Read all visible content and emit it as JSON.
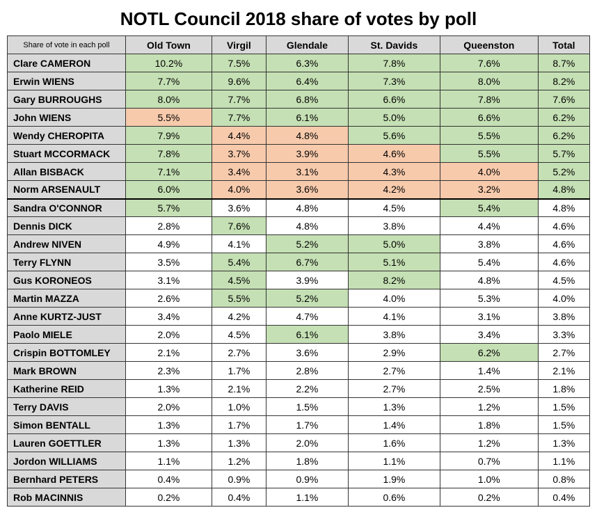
{
  "title": "NOTL Council 2018 share of votes by poll",
  "corner_label": "Share of vote in each poll",
  "columns": [
    "Old Town",
    "Virgil",
    "Glendale",
    "St. Davids",
    "Queenston",
    "Total"
  ],
  "colors": {
    "header_bg": "#d9d9d9",
    "name_bg": "#d9d9d9",
    "green": "#c5e0b4",
    "orange": "#f7caac",
    "white": "#ffffff",
    "border": "#333333",
    "thick_border": "#000000"
  },
  "separator_after_row_index": 7,
  "rows": [
    {
      "name": "Clare CAMERON",
      "cells": [
        {
          "v": "10.2%",
          "c": "green"
        },
        {
          "v": "7.5%",
          "c": "green"
        },
        {
          "v": "6.3%",
          "c": "green"
        },
        {
          "v": "7.8%",
          "c": "green"
        },
        {
          "v": "7.6%",
          "c": "green"
        },
        {
          "v": "8.7%",
          "c": "green"
        }
      ]
    },
    {
      "name": "Erwin WIENS",
      "cells": [
        {
          "v": "7.7%",
          "c": "green"
        },
        {
          "v": "9.6%",
          "c": "green"
        },
        {
          "v": "6.4%",
          "c": "green"
        },
        {
          "v": "7.3%",
          "c": "green"
        },
        {
          "v": "8.0%",
          "c": "green"
        },
        {
          "v": "8.2%",
          "c": "green"
        }
      ]
    },
    {
      "name": "Gary BURROUGHS",
      "cells": [
        {
          "v": "8.0%",
          "c": "green"
        },
        {
          "v": "7.7%",
          "c": "green"
        },
        {
          "v": "6.8%",
          "c": "green"
        },
        {
          "v": "6.6%",
          "c": "green"
        },
        {
          "v": "7.8%",
          "c": "green"
        },
        {
          "v": "7.6%",
          "c": "green"
        }
      ]
    },
    {
      "name": "John WIENS",
      "cells": [
        {
          "v": "5.5%",
          "c": "orange"
        },
        {
          "v": "7.7%",
          "c": "green"
        },
        {
          "v": "6.1%",
          "c": "green"
        },
        {
          "v": "5.0%",
          "c": "green"
        },
        {
          "v": "6.6%",
          "c": "green"
        },
        {
          "v": "6.2%",
          "c": "green"
        }
      ]
    },
    {
      "name": "Wendy CHEROPITA",
      "cells": [
        {
          "v": "7.9%",
          "c": "green"
        },
        {
          "v": "4.4%",
          "c": "orange"
        },
        {
          "v": "4.8%",
          "c": "orange"
        },
        {
          "v": "5.6%",
          "c": "green"
        },
        {
          "v": "5.5%",
          "c": "green"
        },
        {
          "v": "6.2%",
          "c": "green"
        }
      ]
    },
    {
      "name": "Stuart MCCORMACK",
      "cells": [
        {
          "v": "7.8%",
          "c": "green"
        },
        {
          "v": "3.7%",
          "c": "orange"
        },
        {
          "v": "3.9%",
          "c": "orange"
        },
        {
          "v": "4.6%",
          "c": "orange"
        },
        {
          "v": "5.5%",
          "c": "green"
        },
        {
          "v": "5.7%",
          "c": "green"
        }
      ]
    },
    {
      "name": "Allan BISBACK",
      "cells": [
        {
          "v": "7.1%",
          "c": "green"
        },
        {
          "v": "3.4%",
          "c": "orange"
        },
        {
          "v": "3.1%",
          "c": "orange"
        },
        {
          "v": "4.3%",
          "c": "orange"
        },
        {
          "v": "4.0%",
          "c": "orange"
        },
        {
          "v": "5.2%",
          "c": "green"
        }
      ]
    },
    {
      "name": "Norm ARSENAULT",
      "cells": [
        {
          "v": "6.0%",
          "c": "green"
        },
        {
          "v": "4.0%",
          "c": "orange"
        },
        {
          "v": "3.6%",
          "c": "orange"
        },
        {
          "v": "4.2%",
          "c": "orange"
        },
        {
          "v": "3.2%",
          "c": "orange"
        },
        {
          "v": "4.8%",
          "c": "green"
        }
      ]
    },
    {
      "name": "Sandra O'CONNOR",
      "cells": [
        {
          "v": "5.7%",
          "c": "green"
        },
        {
          "v": "3.6%",
          "c": "white"
        },
        {
          "v": "4.8%",
          "c": "white"
        },
        {
          "v": "4.5%",
          "c": "white"
        },
        {
          "v": "5.4%",
          "c": "green"
        },
        {
          "v": "4.8%",
          "c": "white"
        }
      ]
    },
    {
      "name": "Dennis DICK",
      "cells": [
        {
          "v": "2.8%",
          "c": "white"
        },
        {
          "v": "7.6%",
          "c": "green"
        },
        {
          "v": "4.8%",
          "c": "white"
        },
        {
          "v": "3.8%",
          "c": "white"
        },
        {
          "v": "4.4%",
          "c": "white"
        },
        {
          "v": "4.6%",
          "c": "white"
        }
      ]
    },
    {
      "name": "Andrew NIVEN",
      "cells": [
        {
          "v": "4.9%",
          "c": "white"
        },
        {
          "v": "4.1%",
          "c": "white"
        },
        {
          "v": "5.2%",
          "c": "green"
        },
        {
          "v": "5.0%",
          "c": "green"
        },
        {
          "v": "3.8%",
          "c": "white"
        },
        {
          "v": "4.6%",
          "c": "white"
        }
      ]
    },
    {
      "name": "Terry FLYNN",
      "cells": [
        {
          "v": "3.5%",
          "c": "white"
        },
        {
          "v": "5.4%",
          "c": "green"
        },
        {
          "v": "6.7%",
          "c": "green"
        },
        {
          "v": "5.1%",
          "c": "green"
        },
        {
          "v": "5.4%",
          "c": "white"
        },
        {
          "v": "4.6%",
          "c": "white"
        }
      ]
    },
    {
      "name": "Gus KORONEOS",
      "cells": [
        {
          "v": "3.1%",
          "c": "white"
        },
        {
          "v": "4.5%",
          "c": "green"
        },
        {
          "v": "3.9%",
          "c": "white"
        },
        {
          "v": "8.2%",
          "c": "green"
        },
        {
          "v": "4.8%",
          "c": "white"
        },
        {
          "v": "4.5%",
          "c": "white"
        }
      ]
    },
    {
      "name": "Martin MAZZA",
      "cells": [
        {
          "v": "2.6%",
          "c": "white"
        },
        {
          "v": "5.5%",
          "c": "green"
        },
        {
          "v": "5.2%",
          "c": "green"
        },
        {
          "v": "4.0%",
          "c": "white"
        },
        {
          "v": "5.3%",
          "c": "white"
        },
        {
          "v": "4.0%",
          "c": "white"
        }
      ]
    },
    {
      "name": "Anne KURTZ-JUST",
      "cells": [
        {
          "v": "3.4%",
          "c": "white"
        },
        {
          "v": "4.2%",
          "c": "white"
        },
        {
          "v": "4.7%",
          "c": "white"
        },
        {
          "v": "4.1%",
          "c": "white"
        },
        {
          "v": "3.1%",
          "c": "white"
        },
        {
          "v": "3.8%",
          "c": "white"
        }
      ]
    },
    {
      "name": "Paolo MIELE",
      "cells": [
        {
          "v": "2.0%",
          "c": "white"
        },
        {
          "v": "4.5%",
          "c": "white"
        },
        {
          "v": "6.1%",
          "c": "green"
        },
        {
          "v": "3.8%",
          "c": "white"
        },
        {
          "v": "3.4%",
          "c": "white"
        },
        {
          "v": "3.3%",
          "c": "white"
        }
      ]
    },
    {
      "name": "Crispin BOTTOMLEY",
      "cells": [
        {
          "v": "2.1%",
          "c": "white"
        },
        {
          "v": "2.7%",
          "c": "white"
        },
        {
          "v": "3.6%",
          "c": "white"
        },
        {
          "v": "2.9%",
          "c": "white"
        },
        {
          "v": "6.2%",
          "c": "green"
        },
        {
          "v": "2.7%",
          "c": "white"
        }
      ]
    },
    {
      "name": "Mark BROWN",
      "cells": [
        {
          "v": "2.3%",
          "c": "white"
        },
        {
          "v": "1.7%",
          "c": "white"
        },
        {
          "v": "2.8%",
          "c": "white"
        },
        {
          "v": "2.7%",
          "c": "white"
        },
        {
          "v": "1.4%",
          "c": "white"
        },
        {
          "v": "2.1%",
          "c": "white"
        }
      ]
    },
    {
      "name": "Katherine REID",
      "cells": [
        {
          "v": "1.3%",
          "c": "white"
        },
        {
          "v": "2.1%",
          "c": "white"
        },
        {
          "v": "2.2%",
          "c": "white"
        },
        {
          "v": "2.7%",
          "c": "white"
        },
        {
          "v": "2.5%",
          "c": "white"
        },
        {
          "v": "1.8%",
          "c": "white"
        }
      ]
    },
    {
      "name": "Terry DAVIS",
      "cells": [
        {
          "v": "2.0%",
          "c": "white"
        },
        {
          "v": "1.0%",
          "c": "white"
        },
        {
          "v": "1.5%",
          "c": "white"
        },
        {
          "v": "1.3%",
          "c": "white"
        },
        {
          "v": "1.2%",
          "c": "white"
        },
        {
          "v": "1.5%",
          "c": "white"
        }
      ]
    },
    {
      "name": "Simon BENTALL",
      "cells": [
        {
          "v": "1.3%",
          "c": "white"
        },
        {
          "v": "1.7%",
          "c": "white"
        },
        {
          "v": "1.7%",
          "c": "white"
        },
        {
          "v": "1.4%",
          "c": "white"
        },
        {
          "v": "1.8%",
          "c": "white"
        },
        {
          "v": "1.5%",
          "c": "white"
        }
      ]
    },
    {
      "name": "Lauren GOETTLER",
      "cells": [
        {
          "v": "1.3%",
          "c": "white"
        },
        {
          "v": "1.3%",
          "c": "white"
        },
        {
          "v": "2.0%",
          "c": "white"
        },
        {
          "v": "1.6%",
          "c": "white"
        },
        {
          "v": "1.2%",
          "c": "white"
        },
        {
          "v": "1.3%",
          "c": "white"
        }
      ]
    },
    {
      "name": "Jordon WILLIAMS",
      "cells": [
        {
          "v": "1.1%",
          "c": "white"
        },
        {
          "v": "1.2%",
          "c": "white"
        },
        {
          "v": "1.8%",
          "c": "white"
        },
        {
          "v": "1.1%",
          "c": "white"
        },
        {
          "v": "0.7%",
          "c": "white"
        },
        {
          "v": "1.1%",
          "c": "white"
        }
      ]
    },
    {
      "name": "Bernhard PETERS",
      "cells": [
        {
          "v": "0.4%",
          "c": "white"
        },
        {
          "v": "0.9%",
          "c": "white"
        },
        {
          "v": "0.9%",
          "c": "white"
        },
        {
          "v": "1.9%",
          "c": "white"
        },
        {
          "v": "1.0%",
          "c": "white"
        },
        {
          "v": "0.8%",
          "c": "white"
        }
      ]
    },
    {
      "name": "Rob MACINNIS",
      "cells": [
        {
          "v": "0.2%",
          "c": "white"
        },
        {
          "v": "0.4%",
          "c": "white"
        },
        {
          "v": "1.1%",
          "c": "white"
        },
        {
          "v": "0.6%",
          "c": "white"
        },
        {
          "v": "0.2%",
          "c": "white"
        },
        {
          "v": "0.4%",
          "c": "white"
        }
      ]
    }
  ]
}
